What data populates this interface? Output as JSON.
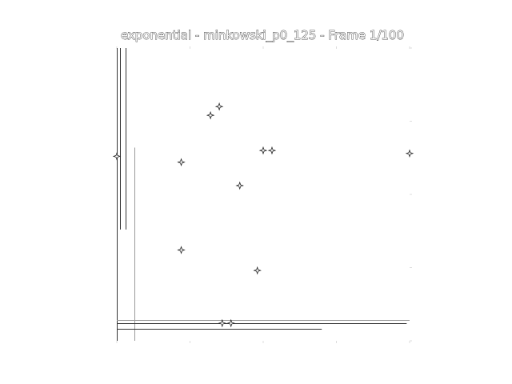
{
  "figure": {
    "title": "exponential - minkowski_p0_125 - Frame 1/100"
  },
  "chart_data": {
    "type": "scatter",
    "title": "exponential - minkowski_p0_125 - Frame 1/100",
    "xlabel": "",
    "ylabel": "",
    "xlim": [
      0,
      1
    ],
    "ylim": [
      0,
      1
    ],
    "grid": false,
    "series": [
      {
        "points": [
          {
            "x": 0.32,
            "y": 0.77
          },
          {
            "x": 0.35,
            "y": 0.8
          },
          {
            "x": 0.22,
            "y": 0.61
          },
          {
            "x": 0.5,
            "y": 0.65
          },
          {
            "x": 0.53,
            "y": 0.65
          },
          {
            "x": 0.42,
            "y": 0.53
          },
          {
            "x": 0.22,
            "y": 0.31
          },
          {
            "x": 0.48,
            "y": 0.24
          },
          {
            "x": 0.36,
            "y": 0.06
          },
          {
            "x": 0.39,
            "y": 0.06
          },
          {
            "x": 1.0,
            "y": 0.64
          },
          {
            "x": 0.0,
            "y": 0.63
          }
        ]
      }
    ],
    "vertical_lines": [
      {
        "x": 0.0,
        "y0": 0.0,
        "y1": 1.0
      },
      {
        "x": 0.01,
        "y0": 0.38,
        "y1": 1.0
      },
      {
        "x": 0.03,
        "y0": 0.38,
        "y1": 1.0
      },
      {
        "x": 0.06,
        "y0": 0.0,
        "y1": 0.66
      }
    ],
    "horizontal_lines": [
      {
        "y": 0.07,
        "x0": 0.0,
        "x1": 1.0
      },
      {
        "y": 0.06,
        "x0": 0.0,
        "x1": 0.99
      },
      {
        "y": 0.04,
        "x0": 0.0,
        "x1": 0.7
      }
    ]
  }
}
